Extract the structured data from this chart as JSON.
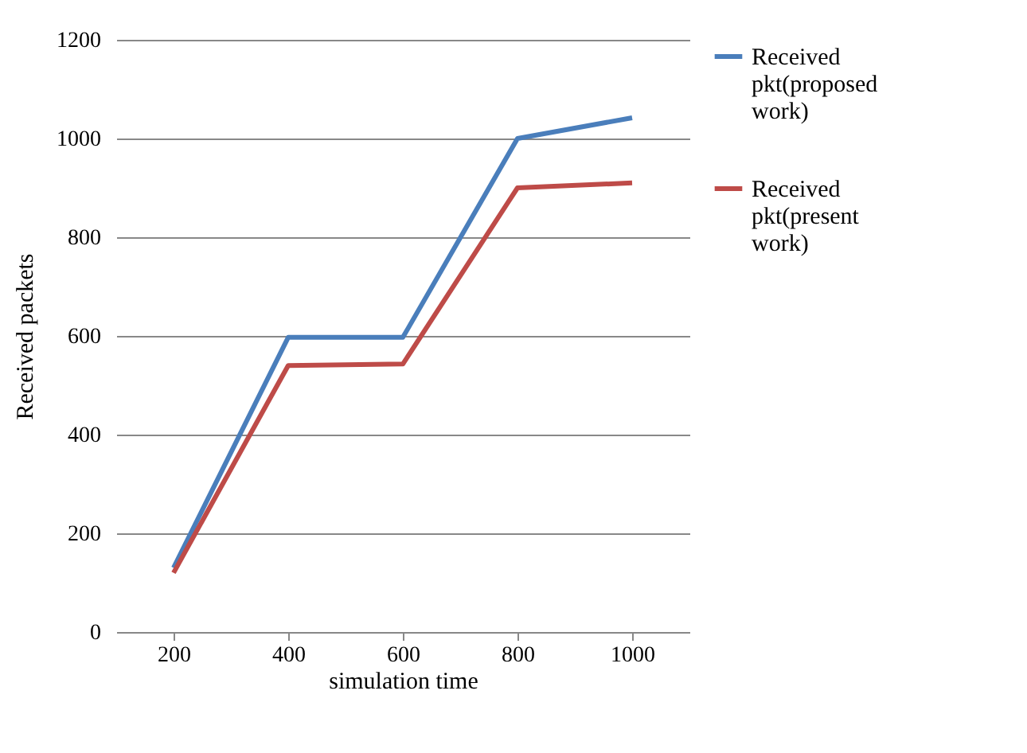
{
  "chart_data": {
    "type": "line",
    "xlabel": "simulation time",
    "ylabel": "Received  packets",
    "categories": [
      "200",
      "400",
      "600",
      "800",
      "1000"
    ],
    "series": [
      {
        "name": "Received pkt(proposed work)",
        "color": "#4a7ebb",
        "values": [
          130,
          597,
          597,
          1000,
          1042
        ]
      },
      {
        "name": "Received pkt(present work)",
        "color": "#be4b48",
        "values": [
          120,
          540,
          543,
          900,
          910
        ]
      }
    ],
    "ylim": [
      0,
      1200
    ],
    "yticks": [
      0,
      200,
      400,
      600,
      800,
      1000,
      1200
    ],
    "grid": "y",
    "legend": "right",
    "marker": "none",
    "line_style": "solid"
  }
}
